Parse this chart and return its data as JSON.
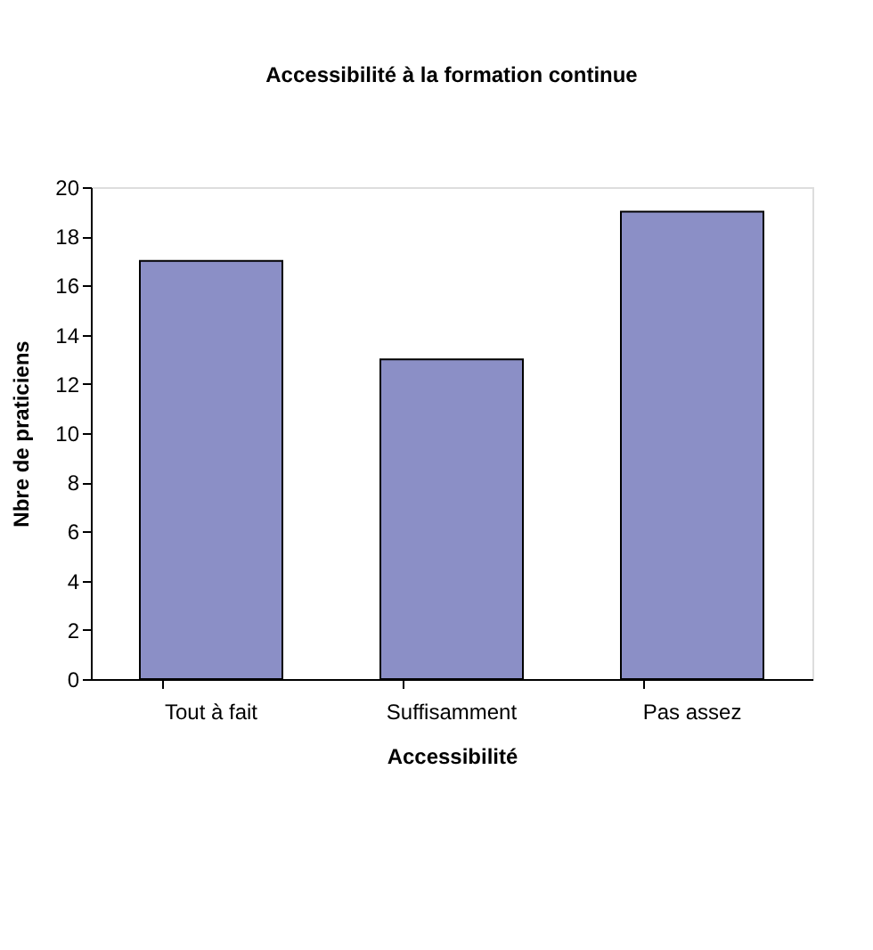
{
  "chart_data": {
    "type": "bar",
    "title": "Accessibilité à la formation continue",
    "xlabel": "Accessibilité",
    "ylabel": "Nbre de praticiens",
    "categories": [
      "Tout à fait",
      "Suffisamment",
      "Pas assez"
    ],
    "values": [
      17,
      13,
      19
    ],
    "color": "#8b8fc6",
    "ylim": [
      0,
      20
    ],
    "yticks": [
      0,
      2,
      4,
      6,
      8,
      10,
      12,
      14,
      16,
      18,
      20
    ],
    "grid": false
  }
}
